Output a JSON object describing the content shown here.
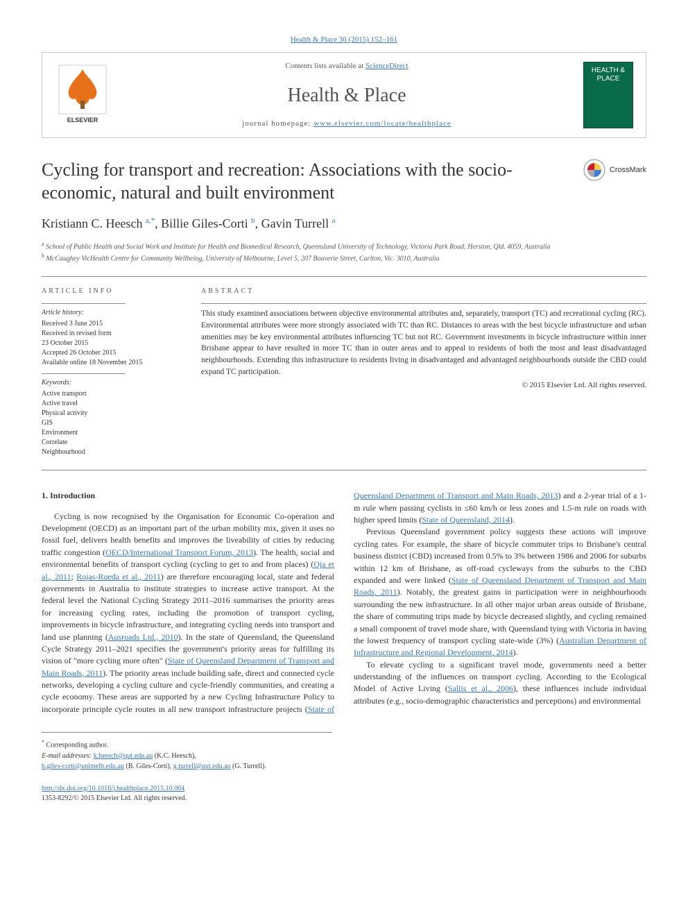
{
  "header": {
    "citation": "Health & Place 36 (2015) 152–161",
    "contents_text": "Contents lists available at ",
    "contents_link": "ScienceDirect",
    "journal_name": "Health & Place",
    "homepage_text": "journal homepage: ",
    "homepage_link": "www.elsevier.com/locate/healthplace",
    "publisher": "ELSEVIER",
    "cover_title": "HEALTH & PLACE"
  },
  "crossmark_label": "CrossMark",
  "article": {
    "title": "Cycling for transport and recreation: Associations with the socio-economic, natural and built environment",
    "authors_html": "Kristiann C. Heesch <span class='sup'>a,*</span>, Billie Giles-Corti <span class='sup'>b</span>, Gavin Turrell <span class='sup'>a</span>",
    "affiliations": [
      {
        "sup": "a",
        "text": " School of Public Health and Social Work and Institute for Health and Biomedical Research, Queensland University of Technology, Victoria Park Road, Herston, Qld. 4059, Australia"
      },
      {
        "sup": "b",
        "text": " McCaughey VicHealth Centre for Community Wellbeing, University of Melbourne, Level 5, 207 Bouverie Street, Carlton, Vic. 3010, Australia"
      }
    ]
  },
  "meta": {
    "info_label": "ARTICLE INFO",
    "history_label": "Article history:",
    "history": [
      "Received 3 June 2015",
      "Received in revised form",
      "23 October 2015",
      "Accepted 26 October 2015",
      "Available online 18 November 2015"
    ],
    "keywords_label": "Keywords:",
    "keywords": [
      "Active transport",
      "Active travel",
      "Physical activity",
      "GIS",
      "Environment",
      "Correlate",
      "Neighbourhood"
    ]
  },
  "abstract": {
    "label": "ABSTRACT",
    "text": "This study examined associations between objective environmental attributes and, separately, transport (TC) and recreational cycling (RC). Environmental attributes were more strongly associated with TC than RC. Distances to areas with the best bicycle infrastructure and urban amenities may be key environmental attributes influencing TC but not RC. Government investments in bicycle infrastructure within inner Brisbane appear to have resulted in more TC than in outer areas and to appeal to residents of both the most and least disadvantaged neighbourhoods. Extending this infrastructure to residents living in disadvantaged and advantaged neighbourhoods outside the CBD could expand TC participation.",
    "copyright": "© 2015 Elsevier Ltd. All rights reserved."
  },
  "body": {
    "section_heading": "1. Introduction",
    "p1a": "Cycling is now recognised by the Organisation for Economic Co-operation and Development (OECD) as an important part of the urban mobility mix, given it uses no fossil fuel, delivers health benefits and improves the liveability of cities by reducing traffic congestion (",
    "r1": "OECD/International Transport Forum, 2013",
    "p1b": "). The health, social and environmental benefits of transport cycling (cycling to get to and from places) (",
    "r2": "Oja et al., 2011",
    "p1c": "; ",
    "r3": "Rojas-Rueda et al., 2011",
    "p1d": ") are therefore encouraging local, state and federal governments in Australia to institute strategies to increase active transport. At the federal level the National Cycling Strategy 2011–2016 summarises the priority areas for increasing cycling rates, including the promotion of transport cycling, improvements in bicycle infrastructure, and integrating cycling needs into transport and land use planning (",
    "r4": "Ausroads Ltd., 2010",
    "p1e": "). In the state of Queensland, the Queensland Cycle Strategy 2011–2021 specifies the government's priority areas for fulfilling its vision of \"more cycling more often\" (",
    "r5": "State of Queensland Department of Transport and Main Roads, 2011",
    "p1f": "). The priority areas include building safe, direct and connected cycle networks, developing a cycling culture ",
    "p2a": "and cycle-friendly communities, and creating a cycle economy. These areas are supported by a new Cycling Infrastructure Policy to incorporate principle cycle routes in all new transport infrastructure projects (",
    "r6": "State of Queensland Department of Transport and Main Roads, 2013",
    "p2b": ") and a 2-year trial of a 1-m rule when passing cyclists in ≤60 km/h or less zones and 1.5-m rule on roads with higher speed limits (",
    "r7": "State of Queensland, 2014",
    "p2c": ").",
    "p3a": "Previous Queensland government policy suggests these actions will improve cycling rates. For example, the share of bicycle commuter trips to Brisbane's central business district (CBD) increased from 0.5% to 3% between 1986 and 2006 for suburbs within 12 km of Brisbane, as off-road cycleways from the suburbs to the CBD expanded and were linked (",
    "r8": "State of Queensland Department of Transport and Main Roads, 2011",
    "p3b": "). Notably, the greatest gains in participation were in neighbourhoods surrounding the new infrastructure. In all other major urban areas outside of Brisbane, the share of commuting trips made by bicycle decreased slightly, and cycling remained a small component of travel mode share, with Queensland tying with Victoria in having the lowest frequency of transport cycling state-wide (3%) (",
    "r9": "Australian Department of Infrastructure and Regional Development, 2014",
    "p3c": ").",
    "p4a": "To elevate cycling to a significant travel mode, governments need a better understanding of the influences on transport cycling. According to the Ecological Model of Active Living (",
    "r10": "Sallis et al., 2006",
    "p4b": "), these influences include individual attributes (e.g., socio-demographic characteristics and perceptions) and environmental"
  },
  "footer": {
    "corr": "* Corresponding author.",
    "email_label": "E-mail addresses: ",
    "e1": "k.heesch@qut.edu.au",
    "n1": " (K.C. Heesch),",
    "e2": "b.giles-corti@unimelb.edu.au",
    "n2": " (B. Giles-Corti), ",
    "e3": "g.turrell@qut.edu.au",
    "n3": " (G. Turrell).",
    "doi": "http://dx.doi.org/10.1016/j.healthplace.2015.10.004",
    "issn_line": "1353-8292/© 2015 Elsevier Ltd. All rights reserved."
  },
  "colors": {
    "link": "#3976b1",
    "border": "#888888",
    "cover_bg": "#0a6b4a",
    "elsevier_orange": "#e8701a"
  }
}
